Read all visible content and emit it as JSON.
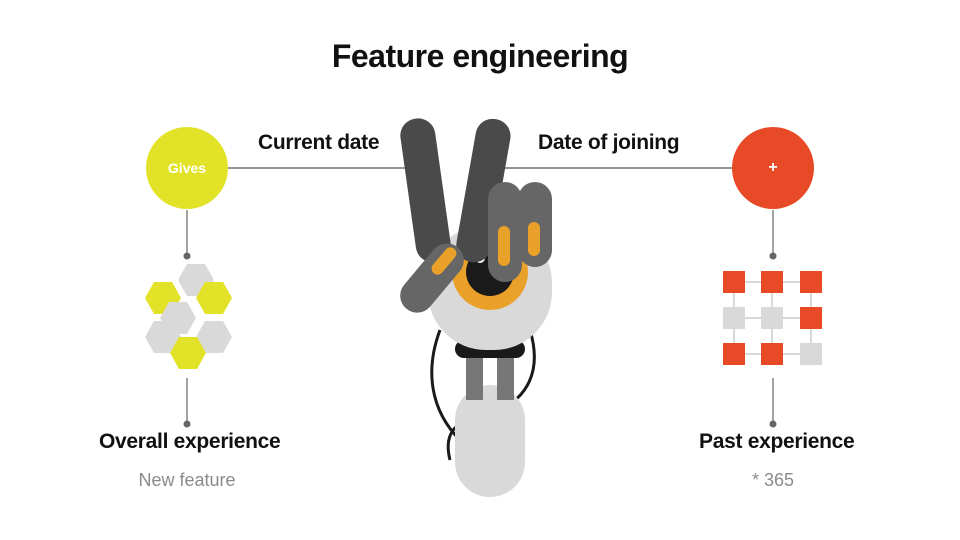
{
  "title": "Feature engineering",
  "left": {
    "top_label": "Current date",
    "circle_text": "Gives",
    "bottom_label": "Overall experience",
    "bottom_sub": "New feature"
  },
  "right": {
    "top_label": "Date of joining",
    "circle_text": "+",
    "bottom_label": "Past experience",
    "bottom_sub": "* 365"
  },
  "colors": {
    "yellow": "#e2e328",
    "red": "#e84a27",
    "gray_light": "#d9d9d9",
    "gray_dark": "#4a4a4a",
    "orange": "#eaa12a"
  }
}
